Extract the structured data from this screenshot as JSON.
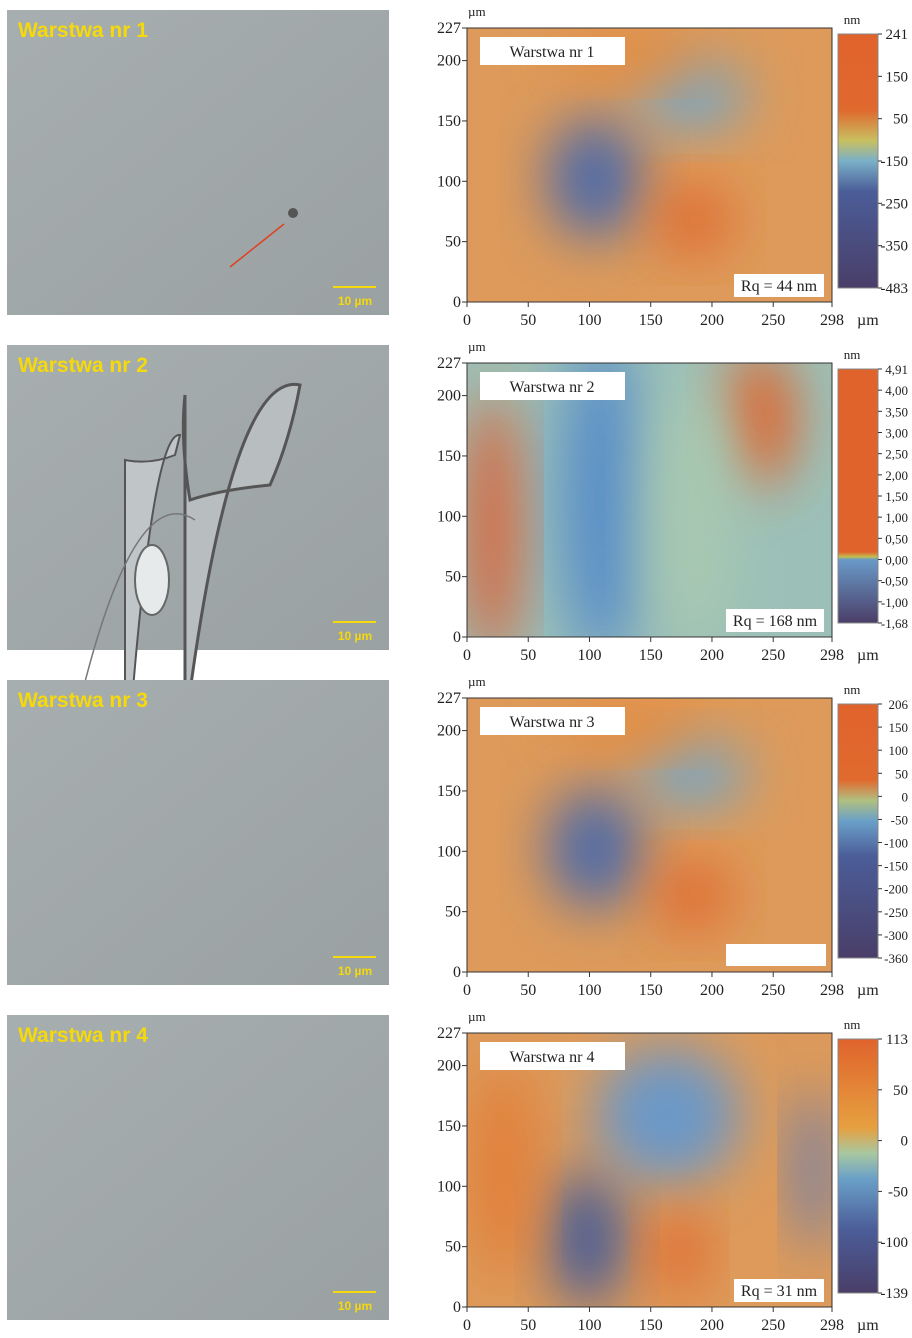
{
  "panels": [
    {
      "micro_label": "Warstwa nr 1",
      "scale_label": "10 µm",
      "map": {
        "label": "Warstwa nr 1",
        "rq": "Rq = 44 nm",
        "x_unit": "µm",
        "y_unit": "µm",
        "x_ticks": [
          0,
          50,
          100,
          150,
          200,
          250,
          298
        ],
        "y_ticks": [
          0,
          50,
          100,
          150,
          200,
          227
        ],
        "colorbar_unit": "nm",
        "colorbar_ticks": [
          "241",
          "150",
          "50",
          "-150",
          "-250",
          "-350",
          "-483"
        ]
      }
    },
    {
      "micro_label": "Warstwa nr 2",
      "scale_label": "10 µm",
      "map": {
        "label": "Warstwa nr 2",
        "rq": "Rq = 168 nm",
        "x_unit": "µm",
        "y_unit": "µm",
        "x_ticks": [
          0,
          50,
          100,
          150,
          200,
          250,
          298
        ],
        "y_ticks": [
          0,
          50,
          100,
          150,
          200,
          227
        ],
        "colorbar_unit": "nm",
        "colorbar_ticks": [
          "4,91",
          "4,00",
          "3,50",
          "3,00",
          "2,50",
          "2,00",
          "1,50",
          "1,00",
          "0,50",
          "0,00",
          "-0,50",
          "-1,00",
          "-1,68"
        ]
      }
    },
    {
      "micro_label": "Warstwa nr 3",
      "scale_label": "10 µm",
      "map": {
        "label": "Warstwa nr 3",
        "x_unit": "µm",
        "y_unit": "µm",
        "x_ticks": [
          0,
          50,
          100,
          150,
          200,
          250,
          298
        ],
        "y_ticks": [
          0,
          50,
          100,
          150,
          200,
          227
        ],
        "colorbar_unit": "nm",
        "colorbar_ticks": [
          "206",
          "150",
          "100",
          "50",
          "0",
          "-50",
          "-100",
          "-150",
          "-200",
          "-250",
          "-300",
          "-360"
        ]
      }
    },
    {
      "micro_label": "Warstwa nr 4",
      "scale_label": "10 µm",
      "map": {
        "label": "Warstwa nr 4",
        "rq": "Rq = 31 nm",
        "x_unit": "µm",
        "y_unit": "µm",
        "x_ticks": [
          0,
          50,
          100,
          150,
          200,
          250,
          298
        ],
        "y_ticks": [
          0,
          50,
          100,
          150,
          200,
          227
        ],
        "colorbar_unit": "nm",
        "colorbar_ticks": [
          "113",
          "50",
          "0",
          "-50",
          "-100",
          "-139"
        ]
      }
    }
  ]
}
